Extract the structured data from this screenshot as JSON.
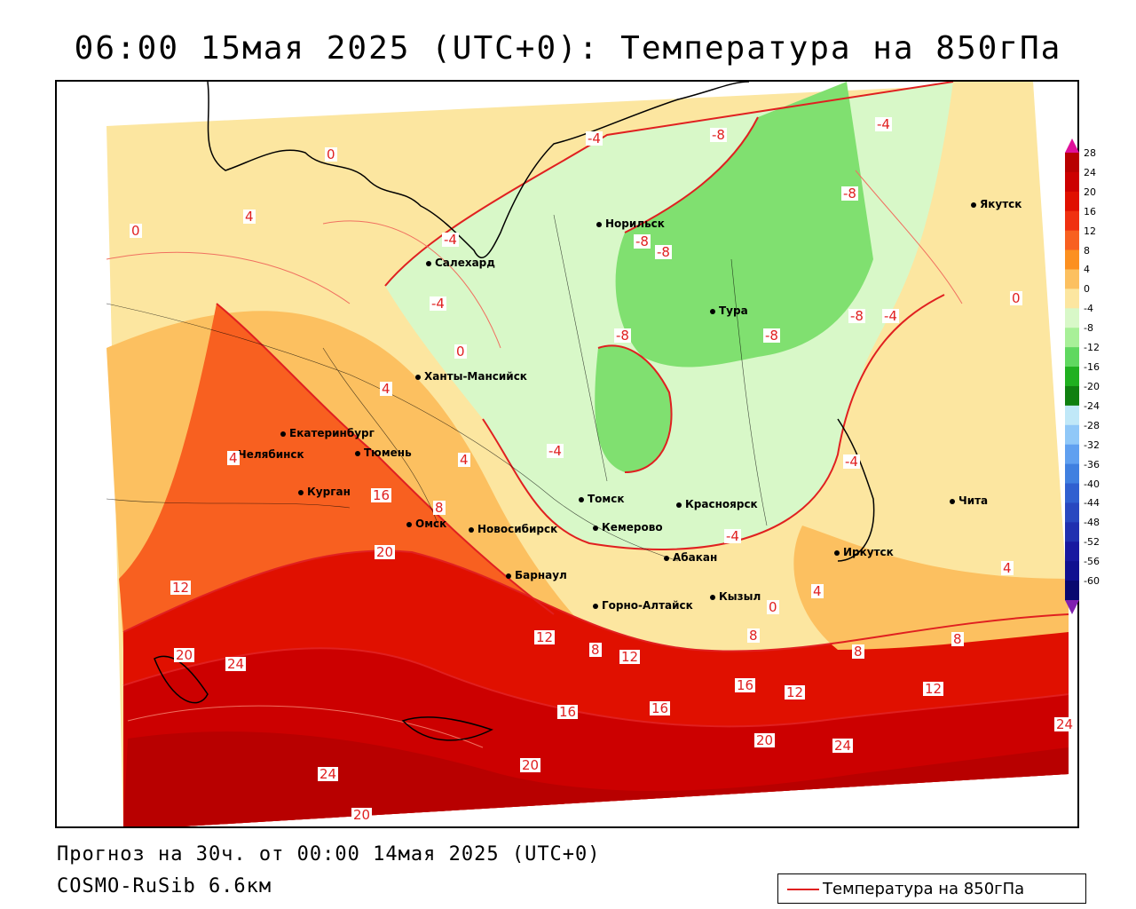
{
  "title": "06:00 15мая 2025 (UTC+0): Температура на 850гПа",
  "footer": {
    "forecast": "Прогноз на 30ч. от 00:00 14мая 2025 (UTC+0)",
    "model": "COSMO-RuSib 6.6км"
  },
  "legend": {
    "label": "Температура на 850гПа",
    "line_color": "#e02020"
  },
  "cities": [
    {
      "id": "yakutsk",
      "name": "Якутск"
    },
    {
      "id": "norilsk",
      "name": "Норильск"
    },
    {
      "id": "salekhard",
      "name": "Салехард"
    },
    {
      "id": "tura",
      "name": "Тура"
    },
    {
      "id": "khanty",
      "name": "Ханты-Мансийск"
    },
    {
      "id": "ekb",
      "name": "Екатеринбург"
    },
    {
      "id": "tyumen",
      "name": "Тюмень"
    },
    {
      "id": "chelyabinsk",
      "name": "Челябинск"
    },
    {
      "id": "kurgan",
      "name": "Курган"
    },
    {
      "id": "omsk",
      "name": "Омск"
    },
    {
      "id": "novosibirsk",
      "name": "Новосибирск"
    },
    {
      "id": "barnaul",
      "name": "Барнаул"
    },
    {
      "id": "tomsk",
      "name": "Томск"
    },
    {
      "id": "kemerovo",
      "name": "Кемерово"
    },
    {
      "id": "krasnoyarsk",
      "name": "Красноярск"
    },
    {
      "id": "abakan",
      "name": "Абакан"
    },
    {
      "id": "kyzyl",
      "name": "Кызыл"
    },
    {
      "id": "gorno",
      "name": "Горно-Алтайск"
    },
    {
      "id": "irkutsk",
      "name": "Иркутск"
    },
    {
      "id": "chita",
      "name": "Чита"
    }
  ],
  "isotherm_labels": [
    "-4",
    "-8",
    "-8",
    "-4",
    "0",
    "4",
    "0",
    "-4",
    "-8",
    "-8",
    "-8",
    "-4",
    "0",
    "4",
    "-4",
    "-8",
    "-8",
    "-4",
    "0",
    "4",
    "4",
    "16",
    "8",
    "20",
    "12",
    "20",
    "24",
    "24",
    "20",
    "20",
    "16",
    "16",
    "12",
    "12",
    "8",
    "8",
    "0",
    "4",
    "8",
    "12",
    "16",
    "20",
    "24",
    "24",
    "-4",
    "-4",
    "8",
    "4",
    "12"
  ],
  "colorbar": {
    "labels": [
      "28",
      "24",
      "20",
      "16",
      "12",
      "8",
      "4",
      "0",
      "-4",
      "-8",
      "-12",
      "-16",
      "-20",
      "-24",
      "-28",
      "-32",
      "-36",
      "-40",
      "-44",
      "-48",
      "-52",
      "-56",
      "-60"
    ],
    "colors": [
      "#b80000",
      "#cc0000",
      "#e01000",
      "#f03010",
      "#f86020",
      "#fc9020",
      "#fcc060",
      "#fce6a0",
      "#d8f8c8",
      "#a8f098",
      "#60d860",
      "#20b020",
      "#108010",
      "#c0e8f8",
      "#90c8f8",
      "#60a0f0",
      "#4080e0",
      "#3060d0",
      "#2848c0",
      "#2030b0",
      "#1818a0",
      "#101090",
      "#080870"
    ]
  }
}
